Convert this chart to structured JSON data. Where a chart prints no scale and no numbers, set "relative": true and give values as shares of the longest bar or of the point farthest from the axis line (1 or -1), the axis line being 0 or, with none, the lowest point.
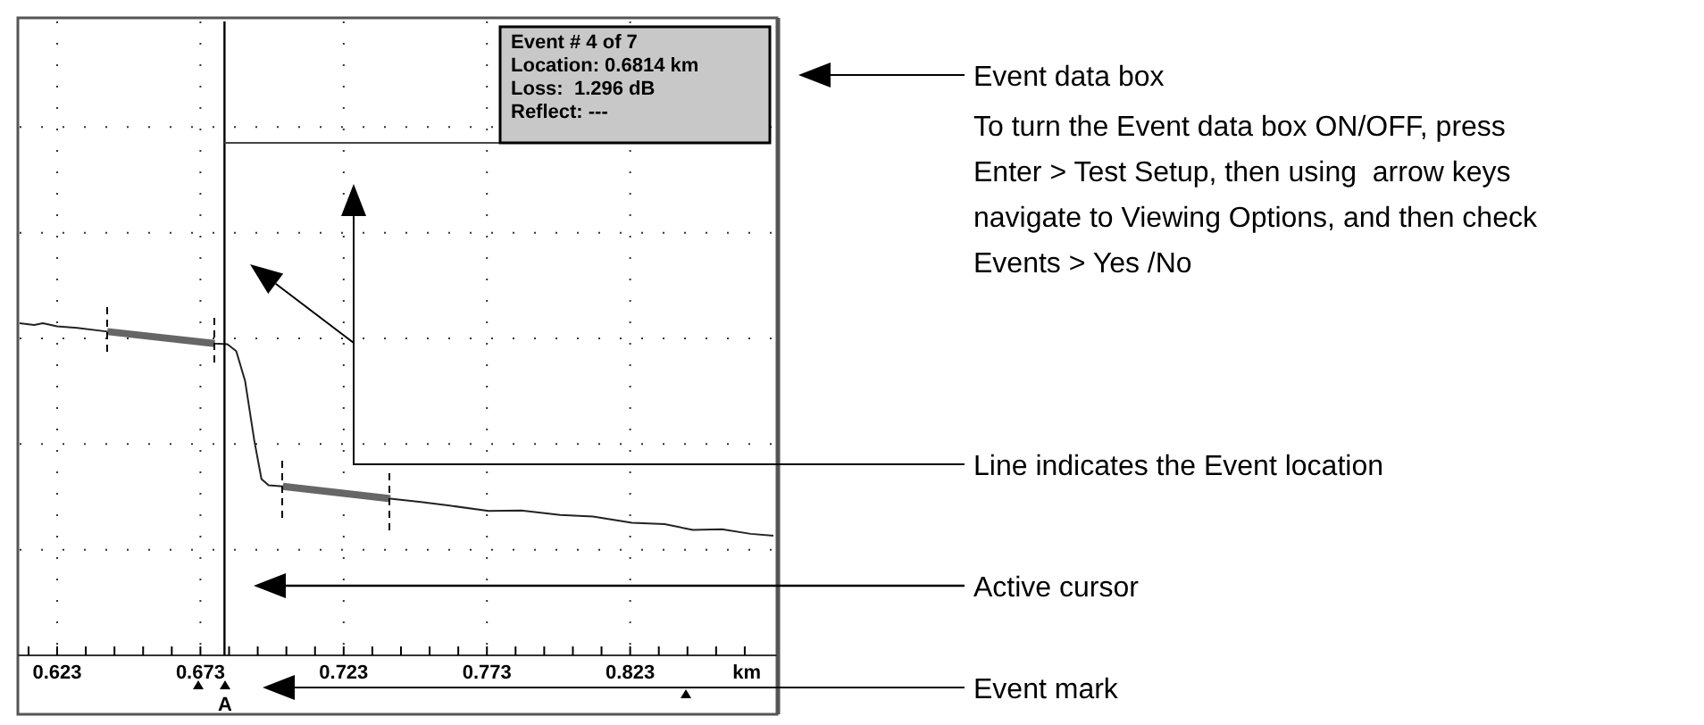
{
  "chart_data": {
    "type": "line",
    "relative": true,
    "xlabel": "km",
    "grid": true,
    "xlim": [
      0.6099,
      0.873
    ],
    "xticks": [
      {
        "value": 0.613,
        "label": null
      },
      0.623,
      {
        "value": 0.633,
        "label": null
      },
      {
        "value": 0.643,
        "label": null
      },
      {
        "value": 0.653,
        "label": null
      },
      {
        "value": 0.663,
        "label": null
      },
      0.673,
      {
        "value": 0.683,
        "label": null
      },
      {
        "value": 0.693,
        "label": null
      },
      {
        "value": 0.703,
        "label": null
      },
      {
        "value": 0.713,
        "label": null
      },
      0.723,
      {
        "value": 0.733,
        "label": null
      },
      {
        "value": 0.743,
        "label": null
      },
      {
        "value": 0.753,
        "label": null
      },
      {
        "value": 0.763,
        "label": null
      },
      0.773,
      {
        "value": 0.783,
        "label": null
      },
      {
        "value": 0.793,
        "label": null
      },
      {
        "value": 0.803,
        "label": null
      },
      {
        "value": 0.813,
        "label": null
      },
      0.823,
      {
        "value": 0.833,
        "label": null
      },
      {
        "value": 0.843,
        "label": null
      },
      {
        "value": 0.853,
        "label": null
      },
      {
        "value": 0.863,
        "label": null
      }
    ],
    "series": [
      {
        "color": "#222222",
        "x": [
          0.6099,
          0.615,
          0.618,
          0.623,
          0.63,
          0.6405,
          0.65,
          0.66,
          0.67,
          0.678,
          0.6824,
          0.6855,
          0.6886,
          0.6918,
          0.6943,
          0.6968,
          0.7018,
          0.71,
          0.72,
          0.7393,
          0.75,
          0.76,
          0.7736,
          0.785,
          0.7986,
          0.81,
          0.8236,
          0.835,
          0.8449,
          0.855,
          0.865,
          0.873
        ],
        "values": [
          1.0,
          0.995,
          1.0,
          0.991,
          0.986,
          0.975,
          0.966,
          0.957,
          0.948,
          0.939,
          0.937,
          0.916,
          0.826,
          0.647,
          0.531,
          0.512,
          0.509,
          0.499,
          0.492,
          0.472,
          0.462,
          0.451,
          0.435,
          0.436,
          0.423,
          0.418,
          0.399,
          0.395,
          0.378,
          0.38,
          0.366,
          0.36
        ]
      },
      {
        "color": "#666666",
        "x": [
          0.6405,
          0.678
        ],
        "values": [
          0.975,
          0.939
        ]
      },
      {
        "color": "#666666",
        "x": [
          0.7018,
          0.7393
        ],
        "values": [
          0.509,
          0.472
        ]
      }
    ],
    "ref_lines": [
      {
        "axis": "x",
        "value": 0.6814,
        "color": "#000000"
      }
    ],
    "annotations": [
      "Event # 4 of 7",
      "Location: 0.6814 km",
      "Loss:  1.296 dB",
      "Reflect: ---",
      "A",
      "Event data box",
      "To turn the Event data box ON/OFF, press Enter > Test Setup, then using  arrow keys navigate to Viewing Options, and then check Events > Yes /No",
      "Line indicates the Event location",
      "Active cursor",
      "Event mark"
    ]
  }
}
